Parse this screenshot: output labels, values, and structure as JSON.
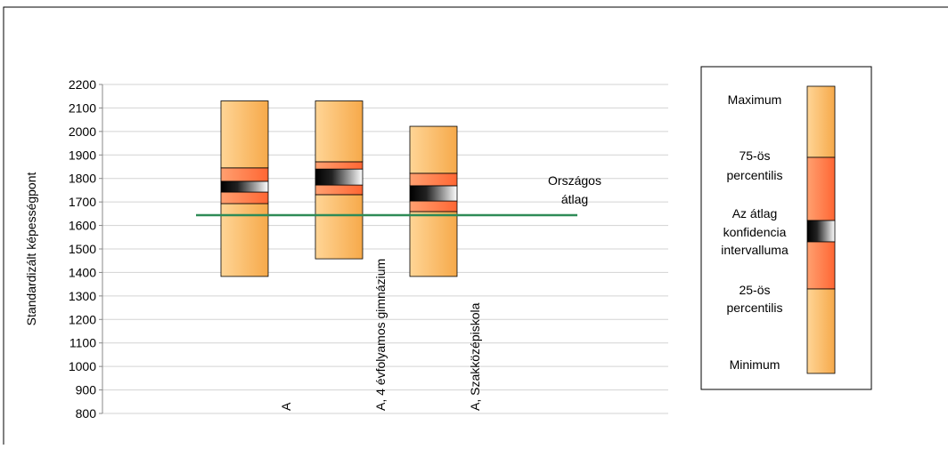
{
  "chart_data": {
    "type": "box",
    "y_label": "Standardizált képességpont",
    "categories": [
      "A",
      "A, 4 évfolyamos gimnázium",
      "A, Szakközépiskola"
    ],
    "boxes": [
      {
        "max": 2130,
        "p75": 1845,
        "ci_upper": 1788,
        "ci_lower": 1742,
        "p25": 1693,
        "min": 1383
      },
      {
        "max": 2130,
        "p75": 1871,
        "ci_upper": 1840,
        "ci_lower": 1772,
        "p25": 1731,
        "min": 1458
      },
      {
        "max": 2022,
        "p75": 1822,
        "ci_upper": 1769,
        "ci_lower": 1704,
        "p25": 1659,
        "min": 1383
      }
    ],
    "ylim": [
      800,
      2200
    ],
    "yticks": [
      800,
      900,
      1000,
      1100,
      1200,
      1300,
      1400,
      1500,
      1600,
      1700,
      1800,
      1900,
      2000,
      2100,
      2200
    ],
    "grid": true,
    "reference": {
      "label": [
        "Országos",
        "átlag"
      ],
      "value": 1644,
      "color": "#2e8b57"
    },
    "legend": [
      [
        "Maximum"
      ],
      [
        "75-ös",
        "percentilis"
      ],
      [
        "Az átlag",
        "konfidencia",
        "intervalluma"
      ],
      [
        "25-ös",
        "percentilis"
      ],
      [
        "Minimum"
      ]
    ]
  }
}
